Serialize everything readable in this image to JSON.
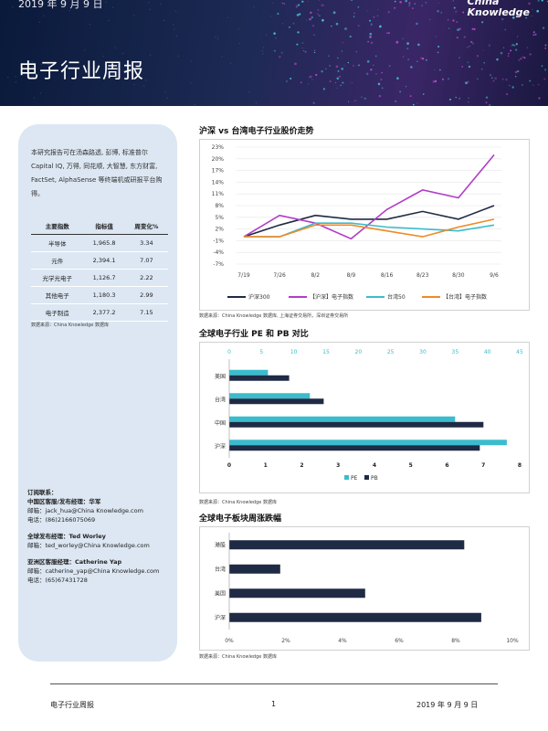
{
  "header": {
    "date": "2019 年 9 月 9 日",
    "title": "电子行业周报",
    "logo_line1": "China",
    "logo_line2": "Knowledge"
  },
  "sidebar": {
    "intro": "本研究报告可在汤森路透, 彭博, 标准普尔 Capital IQ, 万得, 同花顺, 大智慧, 东方财富, FactSet, AlphaSense 等终端机或研报平台购得。",
    "table": {
      "headers": [
        "主要指数",
        "指标值",
        "周变化%"
      ],
      "rows": [
        [
          "半导体",
          "1,965.8",
          "3.34"
        ],
        [
          "元件",
          "2,394.1",
          "7.07"
        ],
        [
          "光学光电子",
          "1,126.7",
          "2.22"
        ],
        [
          "其他电子",
          "1,180.3",
          "2.99"
        ],
        [
          "电子制造",
          "2,377.2",
          "7.15"
        ]
      ]
    },
    "source": "数据来源：China Knowledge 数据库",
    "contact": {
      "heading": "订阅联系：",
      "cn_title": "中国区客服/发布经理：华军",
      "cn_email": "邮箱：jack_hua@China Knowledge.com",
      "cn_phone": "电话：(86)2166075069",
      "global_title": "全球发布经理：Ted Worley",
      "global_email": "邮箱：ted_worley@China Knowledge.com",
      "asia_title": "亚洲区客服经理：Catherine Yap",
      "asia_email": "邮箱：catherine_yap@China Knowledge.com",
      "asia_phone": "电话：(65)67431728"
    }
  },
  "charts": {
    "c1_title": "沪深  vs  台湾电子行业股价走势",
    "c1_source": "数据来源：China Knowledge 数据库, 上海证券交易所，深圳证券交易所",
    "c2_title": "全球电子行业  PE  和  PB  对比",
    "c2_source": "数据来源：China Knowledge 数据库",
    "c3_title": "全球电子板块周涨跌幅",
    "c3_source": "数据来源：China Knowledge 数据库"
  },
  "footer": {
    "left": "电子行业周报",
    "page": "1",
    "date": "2019 年 9 月 9 日"
  },
  "chart_data": [
    {
      "type": "line",
      "title": "沪深  vs  台湾电子行业股价走势",
      "x": [
        "7/19",
        "7/26",
        "8/2",
        "8/9",
        "8/16",
        "8/23",
        "8/30",
        "9/6"
      ],
      "yticks": [
        "23%",
        "20%",
        "17%",
        "14%",
        "11%",
        "8%",
        "5%",
        "2%",
        "-1%",
        "-4%",
        "-7%"
      ],
      "ylim": [
        -7,
        23
      ],
      "series": [
        {
          "name": "沪深300",
          "color": "#1f2a44",
          "values": [
            0,
            3,
            5.5,
            4.5,
            4.5,
            6.5,
            4.5,
            8
          ]
        },
        {
          "name": "【沪深】电子指数",
          "color": "#b23cc8",
          "values": [
            0,
            5.5,
            3.5,
            -0.5,
            7,
            12,
            10,
            21
          ]
        },
        {
          "name": "台湾50",
          "color": "#3bbccc",
          "values": [
            0,
            0,
            3.5,
            3.5,
            2.5,
            2,
            1.5,
            3
          ]
        },
        {
          "name": "【台湾】电子指数",
          "color": "#f08a24",
          "values": [
            0,
            0,
            3,
            3,
            1.5,
            0,
            2.5,
            4.5
          ]
        }
      ]
    },
    {
      "type": "bar",
      "title": "全球电子行业  PE  和  PB  对比",
      "categories": [
        "美国",
        "台湾",
        "中国",
        "沪深"
      ],
      "series": [
        {
          "name": "PE",
          "color": "#3bbccc",
          "axis": "top",
          "values": [
            6,
            12.5,
            35,
            43
          ]
        },
        {
          "name": "PB",
          "color": "#1f2a44",
          "axis": "bottom",
          "values": [
            1.65,
            2.6,
            7,
            6.9
          ]
        }
      ],
      "top_ticks": [
        "0",
        "5",
        "10",
        "15",
        "20",
        "25",
        "30",
        "35",
        "40",
        "45"
      ],
      "bottom_ticks": [
        "0",
        "1",
        "2",
        "3",
        "4",
        "5",
        "6",
        "7",
        "8"
      ]
    },
    {
      "type": "bar",
      "title": "全球电子板块周涨跌幅",
      "categories": [
        "港股",
        "台湾",
        "美国",
        "沪深"
      ],
      "values": [
        8.3,
        1.8,
        4.8,
        8.9
      ],
      "color": "#1f2a44",
      "ticks": [
        "0%",
        "2%",
        "4%",
        "6%",
        "8%",
        "10%"
      ],
      "xlim": [
        0,
        10
      ]
    }
  ]
}
